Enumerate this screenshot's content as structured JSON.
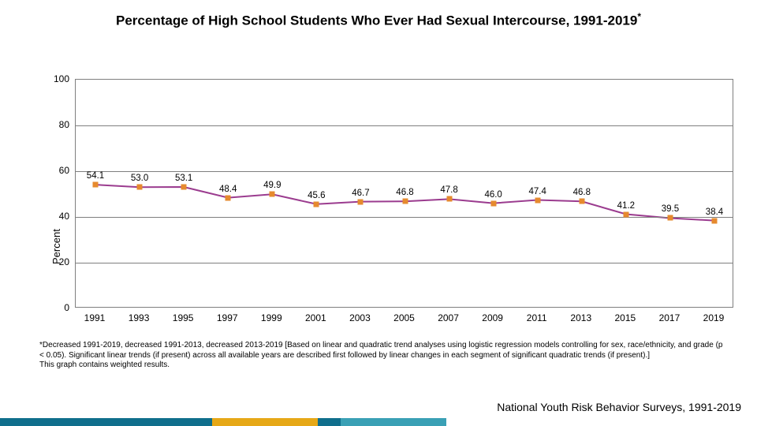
{
  "title": {
    "text": "Percentage of High School Students Who Ever Had Sexual Intercourse, 1991-2019",
    "fontsize": 17,
    "color": "#000000"
  },
  "chart": {
    "type": "line",
    "ylabel": "Percent",
    "ylim": [
      0,
      100
    ],
    "yticks": [
      0,
      20,
      40,
      60,
      80,
      100
    ],
    "xticks": [
      1991,
      1993,
      1995,
      1997,
      1999,
      2001,
      2003,
      2005,
      2007,
      2009,
      2011,
      2013,
      2015,
      2017,
      2019
    ],
    "values": [
      54.1,
      53.0,
      53.1,
      48.4,
      49.9,
      45.6,
      46.7,
      46.8,
      47.8,
      46.0,
      47.4,
      46.8,
      41.2,
      39.5,
      38.4
    ],
    "labels": [
      "54.1",
      "53.0",
      "53.1",
      "48.4",
      "49.9",
      "45.6",
      "46.7",
      "46.8",
      "47.8",
      "46.0",
      "47.4",
      "46.8",
      "41.2",
      "39.5",
      "38.4"
    ],
    "line_color": "#9b3c8f",
    "line_width": 2,
    "marker_style": "square",
    "marker_color": "#e68a2e",
    "marker_size": 7,
    "background_color": "#ffffff",
    "grid_color": "#7f7f7f",
    "border_color": "#7f7f7f",
    "label_fontsize": 12,
    "value_label_fontsize": 11.5
  },
  "footnote": {
    "asterisk": "*",
    "text": "Decreased 1991-2019, decreased 1991-2013, decreased 2013-2019 [Based on linear and quadratic trend analyses using logistic regression models controlling for sex, race/ethnicity, and grade (p < 0.05). Significant linear trends (if present) across all available years are described first followed by linear changes in each segment of significant quadratic trends (if present).]",
    "text2": "This graph contains weighted results."
  },
  "source": "National Youth Risk Behavior Surveys, 1991-2019",
  "stripes": [
    {
      "color": "#0f6e8c",
      "width": 28
    },
    {
      "color": "#e6a817",
      "width": 14
    },
    {
      "color": "#0f6e8c",
      "width": 3
    },
    {
      "color": "#3aa0b5",
      "width": 14
    },
    {
      "color": "#ffffff",
      "width": 41
    }
  ]
}
